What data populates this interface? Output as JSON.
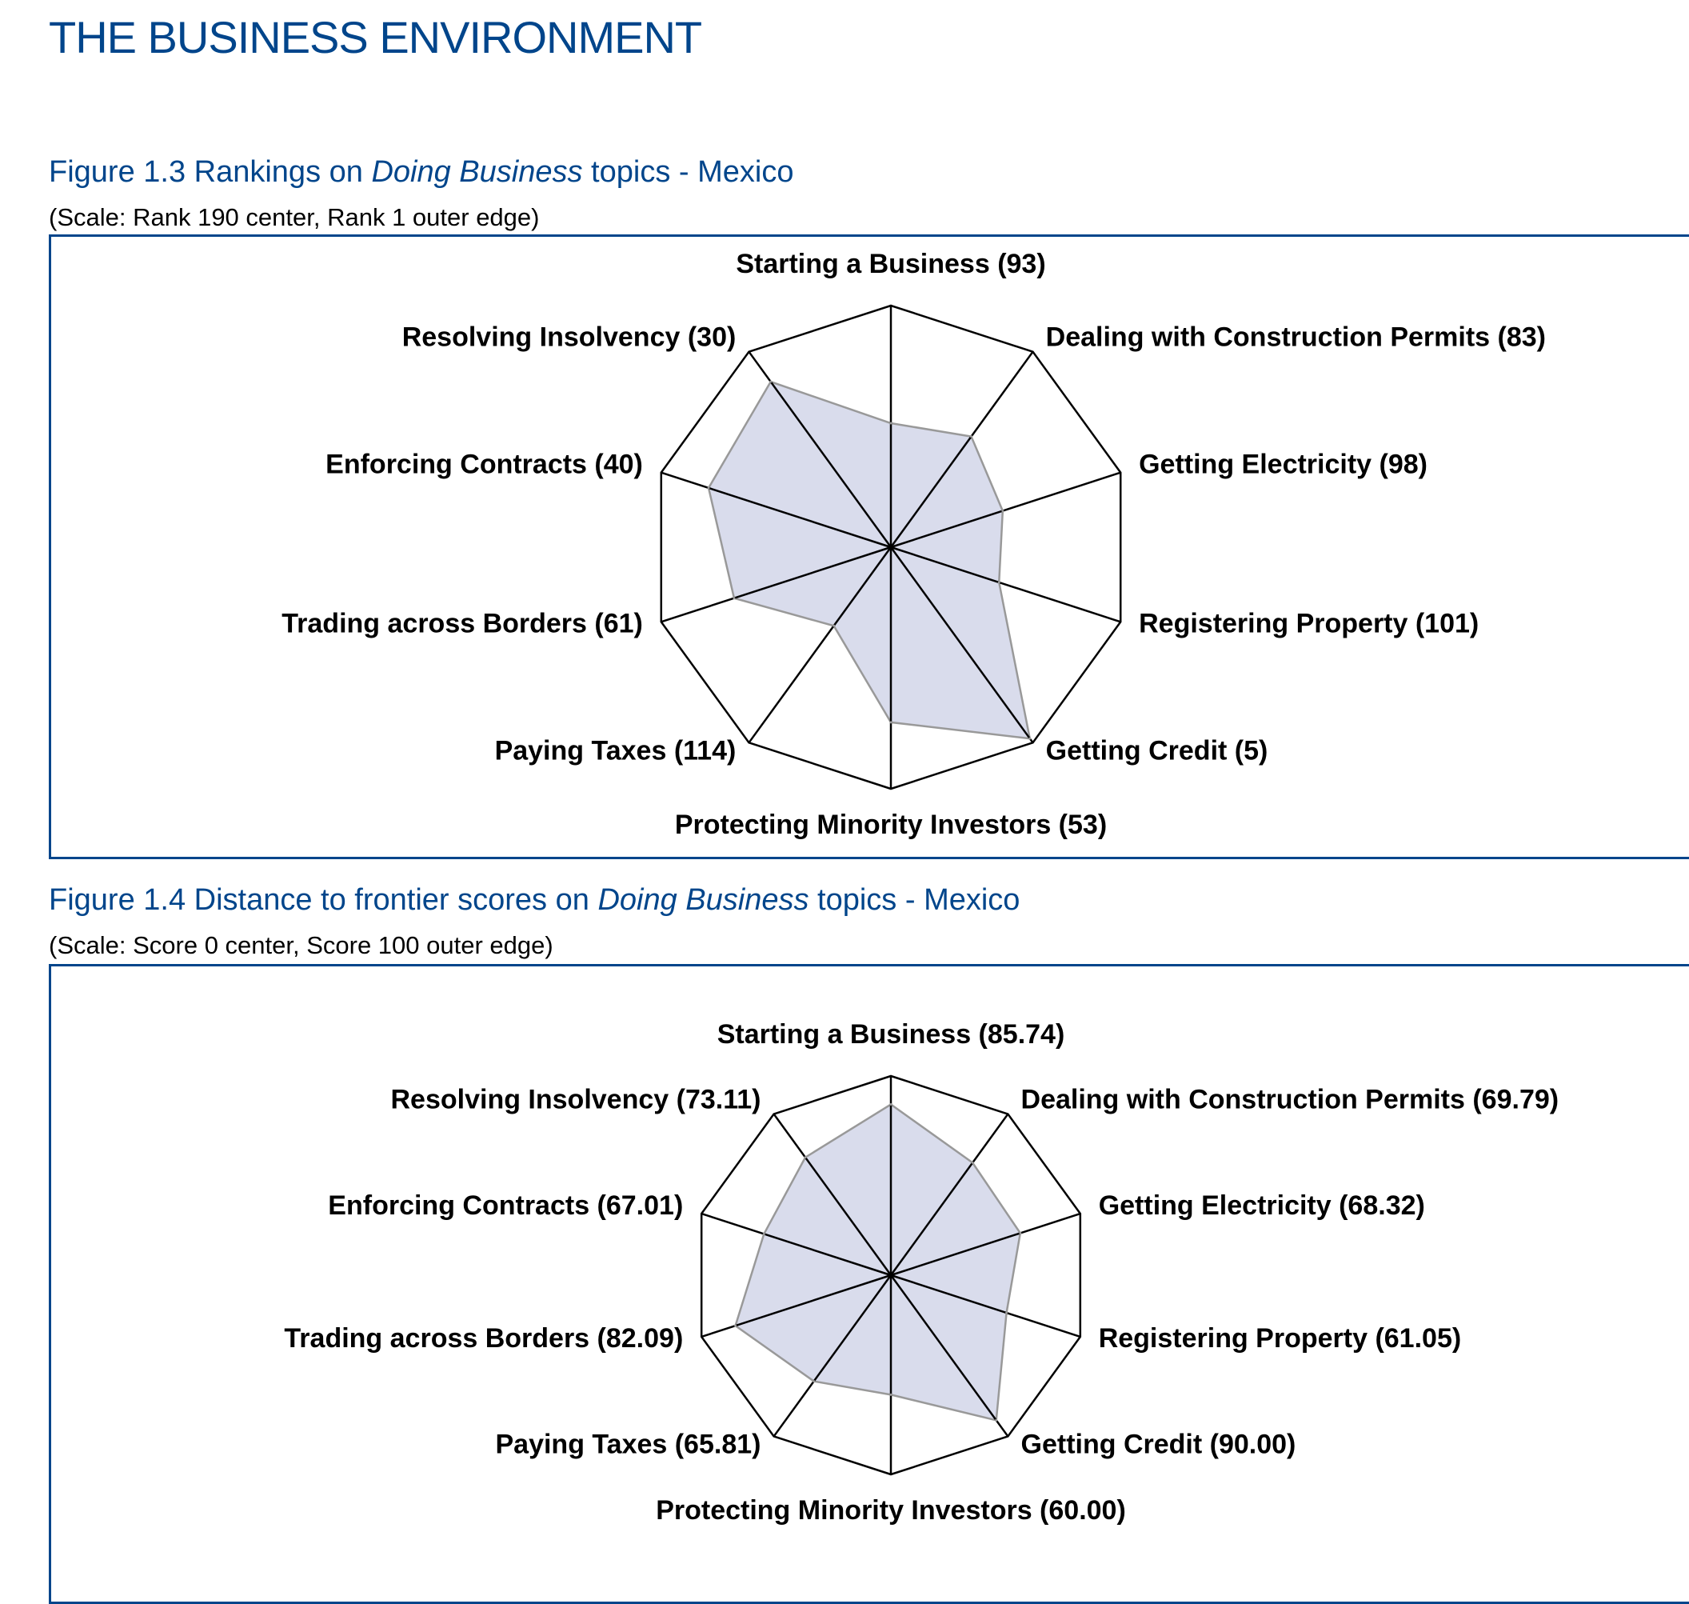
{
  "header": {
    "title": "THE BUSINESS ENVIRONMENT"
  },
  "figures": [
    {
      "caption_prefix": "Figure 1.3 Rankings on ",
      "caption_italic": "Doing Business",
      "caption_suffix": " topics - Mexico",
      "scale_note": "(Scale: Rank 190 center, Rank 1 outer edge)"
    },
    {
      "caption_prefix": "Figure 1.4 Distance to frontier scores on ",
      "caption_italic": "Doing Business",
      "caption_suffix": " topics - Mexico",
      "scale_note": "(Scale: Score 0 center, Score 100 outer edge)"
    }
  ],
  "chart_data": [
    {
      "type": "radar",
      "scale": {
        "center": 190,
        "outer": 1
      },
      "fill_color": "#d9dcec",
      "outline_color": "#999999",
      "grid_color": "#000000",
      "categories": [
        "Starting a Business",
        "Dealing with Construction Permits",
        "Getting Electricity",
        "Registering Property",
        "Getting Credit",
        "Protecting Minority Investors",
        "Paying Taxes",
        "Trading across Borders",
        "Enforcing Contracts",
        "Resolving Insolvency"
      ],
      "values": [
        93,
        83,
        98,
        101,
        5,
        53,
        114,
        61,
        40,
        30
      ],
      "labels": [
        "Starting a Business (93)",
        "Dealing with Construction Permits (83)",
        "Getting Electricity (98)",
        "Registering Property (101)",
        "Getting Credit (5)",
        "Protecting Minority Investors (53)",
        "Paying Taxes (114)",
        "Trading across Borders (61)",
        "Enforcing Contracts (40)",
        "Resolving Insolvency (30)"
      ]
    },
    {
      "type": "radar",
      "scale": {
        "center": 0,
        "outer": 100
      },
      "fill_color": "#d9dcec",
      "outline_color": "#999999",
      "grid_color": "#000000",
      "categories": [
        "Starting a Business",
        "Dealing with Construction Permits",
        "Getting Electricity",
        "Registering Property",
        "Getting Credit",
        "Protecting Minority Investors",
        "Paying Taxes",
        "Trading across Borders",
        "Enforcing Contracts",
        "Resolving Insolvency"
      ],
      "values": [
        85.74,
        69.79,
        68.32,
        61.05,
        90.0,
        60.0,
        65.81,
        82.09,
        67.01,
        73.11
      ],
      "labels": [
        "Starting a Business (85.74)",
        "Dealing with Construction Permits (69.79)",
        "Getting Electricity (68.32)",
        "Registering Property (61.05)",
        "Getting Credit (90.00)",
        "Protecting Minority Investors (60.00)",
        "Paying Taxes (65.81)",
        "Trading across Borders (82.09)",
        "Enforcing Contracts (67.01)",
        "Resolving Insolvency (73.11)"
      ]
    }
  ]
}
